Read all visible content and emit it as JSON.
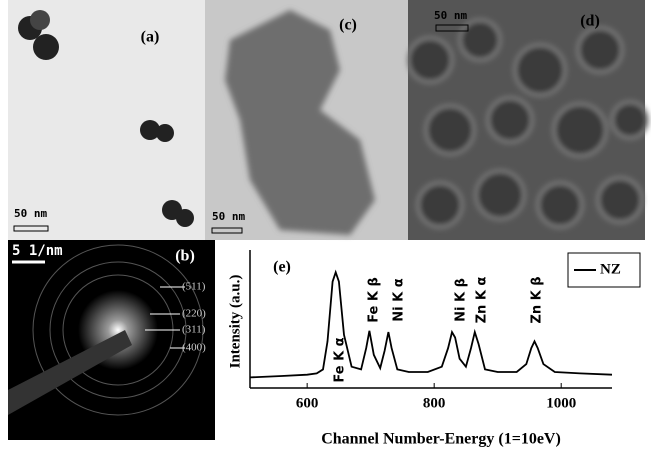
{
  "panels": [
    {
      "label": "(a)",
      "scale_bar": "50 nm"
    },
    {
      "label": "(c)",
      "scale_bar": "50 nm"
    },
    {
      "label": "(d)",
      "scale_bar": "50 nm"
    },
    {
      "label": "(b)",
      "scale_bar": "5 1/nm",
      "rings": [
        "(511)",
        "(220)",
        "(311)",
        "(400)"
      ]
    }
  ],
  "chart_data": {
    "type": "line",
    "panel_label": "(e)",
    "x_label": "Channel Number-Energy (1=10eV)",
    "y_label": "Intensity (a.u.)",
    "x": [
      510,
      560,
      600,
      615,
      625,
      632,
      640,
      645,
      650,
      658,
      670,
      685,
      693,
      698,
      705,
      715,
      722,
      728,
      733,
      742,
      760,
      790,
      812,
      822,
      828,
      833,
      840,
      850,
      858,
      864,
      870,
      880,
      900,
      930,
      945,
      953,
      958,
      963,
      972,
      990,
      1030,
      1080
    ],
    "series": [
      {
        "name": "NZ",
        "color": "#000000",
        "values": [
          8,
          9,
          10,
          11,
          14,
          35,
          80,
          87,
          80,
          40,
          16,
          14,
          30,
          43,
          25,
          15,
          28,
          42,
          30,
          14,
          12,
          12,
          16,
          30,
          42,
          38,
          22,
          16,
          30,
          42,
          33,
          14,
          12,
          12,
          18,
          30,
          35,
          30,
          18,
          12,
          11,
          10
        ]
      }
    ],
    "annotations": [
      "Fe K α",
      "Fe K β",
      "Ni K α",
      "Ni K β",
      "Zn K α",
      "Zn K β"
    ],
    "xlim": [
      510,
      1080
    ],
    "ylim": [
      0,
      100
    ],
    "xticks": [
      600,
      800,
      1000
    ],
    "legend": "top-right"
  }
}
